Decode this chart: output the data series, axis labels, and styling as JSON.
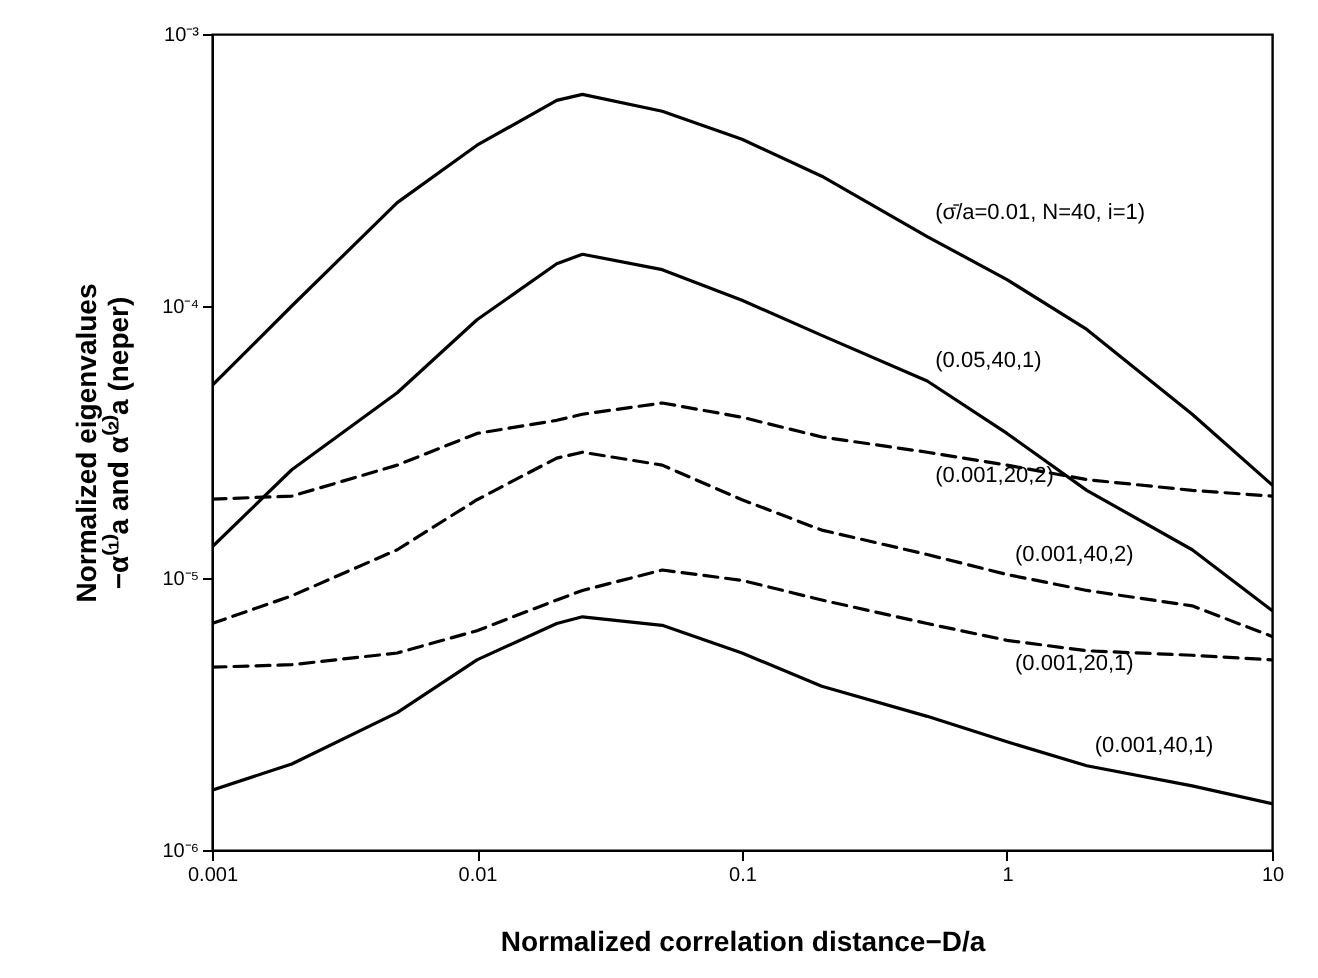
{
  "chart_data": {
    "type": "line",
    "xlabel": "Normalized correlation distance−D/a",
    "ylabel": "Normalized eigenvalues\n−α⁽¹⁾a and α⁽²⁾a (neper)",
    "log": "xy",
    "x": [
      0.001,
      0.002,
      0.005,
      0.01,
      0.02,
      0.025,
      0.05,
      0.1,
      0.2,
      0.5,
      1,
      2,
      5,
      10
    ],
    "xlim": [
      0.001,
      10
    ],
    "xticks": [
      0.001,
      0.01,
      0.1,
      1,
      10
    ],
    "ylim": [
      1e-06,
      0.001
    ],
    "yticks": [
      {
        "value": 1e-06,
        "label": "10⁻⁶"
      },
      {
        "value": 1e-05,
        "label": "10⁻⁵"
      },
      {
        "value": 0.0001,
        "label": "10⁻⁴"
      },
      {
        "value": 0.001,
        "label": "10⁻³"
      }
    ],
    "series": [
      {
        "name": "(σ̄/a=0.01, N=40, i=1)",
        "color": "#000000",
        "line_style": "solid",
        "values": [
          5.1e-05,
          0.0001,
          0.00024,
          0.00039,
          0.00057,
          0.0006,
          0.00052,
          0.00041,
          0.0003,
          0.00018,
          0.000125,
          8.2e-05,
          4e-05,
          2.2e-05
        ]
      },
      {
        "name": "(0.05,40,1)",
        "color": "#000000",
        "line_style": "solid",
        "values": [
          1.3e-05,
          2.5e-05,
          4.8e-05,
          8.9e-05,
          0.000143,
          0.000155,
          0.000136,
          0.000105,
          7.8e-05,
          5.3e-05,
          3.4e-05,
          2.1e-05,
          1.27e-05,
          7.6e-06
        ]
      },
      {
        "name": "(0.001,20,2)",
        "color": "#000000",
        "line_style": "dashed",
        "values": [
          1.95e-05,
          2e-05,
          2.6e-05,
          3.4e-05,
          3.8e-05,
          4e-05,
          4.4e-05,
          3.9e-05,
          3.3e-05,
          2.9e-05,
          2.6e-05,
          2.3e-05,
          2.1e-05,
          2e-05
        ]
      },
      {
        "name": "(0.001,40,2)",
        "color": "#000000",
        "line_style": "dashed",
        "values": [
          6.8e-06,
          8.6e-06,
          1.27e-05,
          1.94e-05,
          2.76e-05,
          2.9e-05,
          2.6e-05,
          1.94e-05,
          1.5e-05,
          1.22e-05,
          1.03e-05,
          9e-06,
          7.9e-06,
          6.1e-06
        ]
      },
      {
        "name": "(0.001,20,1)",
        "color": "#000000",
        "line_style": "dashed",
        "values": [
          4.7e-06,
          4.8e-06,
          5.3e-06,
          6.4e-06,
          8.3e-06,
          9e-06,
          1.07e-05,
          9.8e-06,
          8.3e-06,
          6.8e-06,
          5.9e-06,
          5.4e-06,
          5.2e-06,
          5e-06
        ]
      },
      {
        "name": "(0.001,40,1)",
        "color": "#000000",
        "line_style": "solid",
        "values": [
          1.66e-06,
          2.07e-06,
          3.2e-06,
          5e-06,
          6.8e-06,
          7.2e-06,
          6.7e-06,
          5.3e-06,
          4e-06,
          3.1e-06,
          2.5e-06,
          2.04e-06,
          1.72e-06,
          1.48e-06
        ]
      }
    ]
  }
}
